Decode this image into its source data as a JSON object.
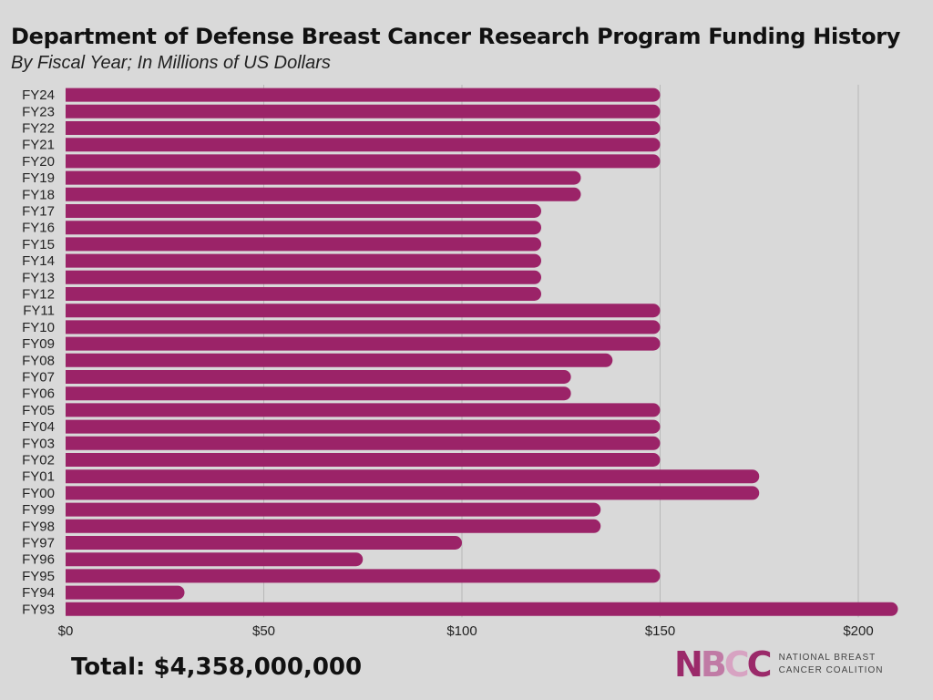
{
  "title": "Department of Defense Breast Cancer Research Program Funding History",
  "subtitle": "By Fiscal Year; In Millions of US Dollars",
  "total_label": "Total: $4,358,000,000",
  "logo": {
    "mark_letters": [
      "N",
      "B",
      "C",
      "C"
    ],
    "line1": "NATIONAL BREAST",
    "line2": "CANCER COALITION"
  },
  "colors": {
    "bar": "#9b2368",
    "grid": "#b8b8b8",
    "background": "#d9d9d9"
  },
  "chart_data": {
    "type": "bar",
    "orientation": "horizontal",
    "title": "Department of Defense Breast Cancer Research Program Funding History",
    "subtitle": "By Fiscal Year; In Millions of US Dollars",
    "xlabel": "",
    "ylabel": "",
    "xlim": [
      0,
      210
    ],
    "xticks": [
      0,
      50,
      100,
      150,
      200
    ],
    "xtick_labels": [
      "$0",
      "$50",
      "$100",
      "$150",
      "$200"
    ],
    "grid": "vertical",
    "categories": [
      "FY24",
      "FY23",
      "FY22",
      "FY21",
      "FY20",
      "FY19",
      "FY18",
      "FY17",
      "FY16",
      "FY15",
      "FY14",
      "FY13",
      "FY12",
      "FY11",
      "FY10",
      "FY09",
      "FY08",
      "FY07",
      "FY06",
      "FY05",
      "FY04",
      "FY03",
      "FY02",
      "FY01",
      "FY00",
      "FY99",
      "FY98",
      "FY97",
      "FY96",
      "FY95",
      "FY94",
      "FY93"
    ],
    "values": [
      150,
      150,
      150,
      150,
      150,
      130,
      130,
      120,
      120,
      120,
      120,
      120,
      120,
      150,
      150,
      150,
      138,
      127.5,
      127.5,
      150,
      150,
      150,
      150,
      175,
      175,
      135,
      135,
      100,
      75,
      150,
      30,
      210
    ]
  }
}
